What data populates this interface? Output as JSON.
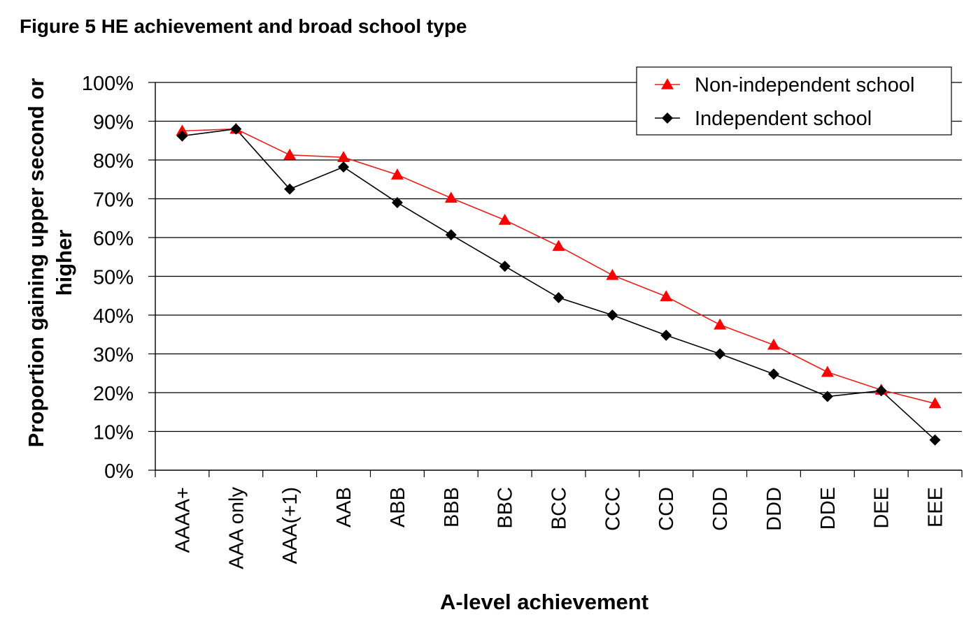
{
  "figure_title": "Figure 5 HE achievement and broad school type",
  "chart_data": {
    "type": "line",
    "title": "Figure 5 HE achievement and broad school type",
    "xlabel": "A-level achievement",
    "ylabel_lines": [
      "Proportion gaining upper second or",
      "higher"
    ],
    "categories": [
      "AAAA+",
      "AAA only",
      "AAA(+1)",
      "AAB",
      "ABB",
      "BBB",
      "BBC",
      "BCC",
      "CCC",
      "CCD",
      "CDD",
      "DDD",
      "DDE",
      "DEE",
      "EEE"
    ],
    "ylim": [
      0,
      100
    ],
    "yticks": [
      0,
      10,
      20,
      30,
      40,
      50,
      60,
      70,
      80,
      90,
      100
    ],
    "ytick_labels": [
      "0%",
      "10%",
      "20%",
      "30%",
      "40%",
      "50%",
      "60%",
      "70%",
      "80%",
      "90%",
      "100%"
    ],
    "grid": true,
    "legend_position": "top-right",
    "series": [
      {
        "name": "Non-independent school",
        "color": "#ff0000",
        "line_color": "#e8201c",
        "marker": "triangle",
        "values": [
          87.5,
          88,
          81.3,
          80.7,
          76.2,
          70.2,
          64.5,
          57.8,
          50.3,
          44.8,
          37.5,
          32.3,
          25.3,
          20.7,
          17.2
        ]
      },
      {
        "name": "Independent school",
        "color": "#000000",
        "line_color": "#000000",
        "marker": "diamond",
        "values": [
          86.2,
          88,
          72.5,
          78.2,
          69,
          60.7,
          52.6,
          44.5,
          40,
          34.8,
          30,
          24.8,
          19,
          20.5,
          7.8
        ]
      }
    ]
  }
}
